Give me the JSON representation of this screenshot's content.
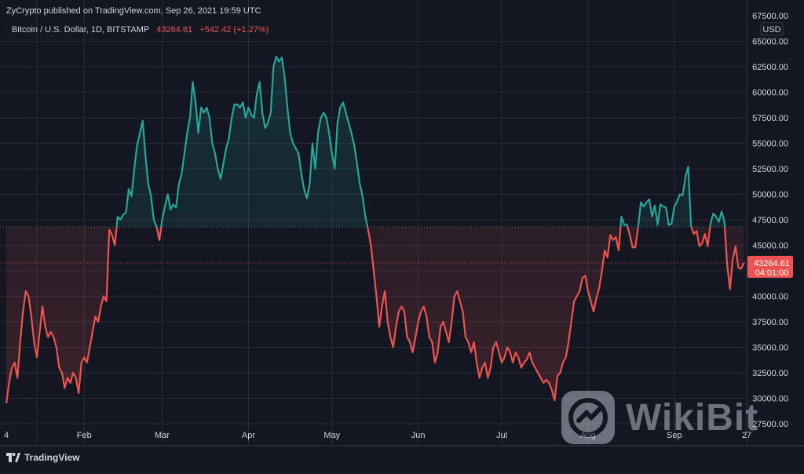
{
  "header": {
    "publish_line": "ZyCrypto published on TradingView.com, Sep 26, 2021 19:59 UTC",
    "symbol": "Bitcoin / U.S. Dollar, 1D, BITSTAMP",
    "last_price": "43264.61",
    "change": "+542.42 (+1.27%)"
  },
  "price_axis": {
    "currency": "USD",
    "top_label": "67500.00",
    "ticks": [
      "65000.00",
      "62500.00",
      "60000.00",
      "57500.00",
      "55000.00",
      "52500.00",
      "50000.00",
      "47500.00",
      "45000.00",
      "42500.00",
      "40000.00",
      "37500.00",
      "35000.00",
      "32500.00",
      "30000.00",
      "27500.00"
    ]
  },
  "time_axis": {
    "labels": [
      "4",
      "Feb",
      "Mar",
      "Apr",
      "May",
      "Jun",
      "Jul",
      "Aug",
      "Sep",
      "27"
    ]
  },
  "last_price_tag": {
    "price": "43264.61",
    "countdown": "04:01:00"
  },
  "branding": {
    "tradingview": "TradingView",
    "watermark": "WikiBit"
  },
  "colors": {
    "background": "#131722",
    "grid": "#2a2e39",
    "up": "#26a69a",
    "down": "#ef5350",
    "text": "#d1d4dc"
  },
  "chart_data": {
    "type": "line",
    "title": "Bitcoin / U.S. Dollar, 1D, BITSTAMP",
    "ylabel": "USD",
    "ylim": [
      27500,
      67500
    ],
    "baseline": 46800,
    "last_price": 43264.61,
    "x_start": "2021-01-04",
    "x_end": "2021-09-27",
    "series": [
      {
        "values": [
          [
            "2021-01-04",
            29500
          ],
          [
            "2021-01-05",
            31500
          ],
          [
            "2021-01-06",
            33000
          ],
          [
            "2021-01-07",
            33500
          ],
          [
            "2021-01-08",
            32000
          ],
          [
            "2021-01-09",
            35500
          ],
          [
            "2021-01-10",
            38500
          ],
          [
            "2021-01-11",
            40500
          ],
          [
            "2021-01-12",
            40000
          ],
          [
            "2021-01-13",
            38000
          ],
          [
            "2021-01-14",
            35500
          ],
          [
            "2021-01-15",
            34000
          ],
          [
            "2021-01-16",
            36500
          ],
          [
            "2021-01-17",
            39000
          ],
          [
            "2021-01-18",
            37000
          ],
          [
            "2021-01-19",
            36000
          ],
          [
            "2021-01-20",
            36500
          ],
          [
            "2021-01-21",
            36000
          ],
          [
            "2021-01-22",
            35000
          ],
          [
            "2021-01-23",
            33000
          ],
          [
            "2021-01-24",
            32500
          ],
          [
            "2021-01-25",
            31000
          ],
          [
            "2021-01-26",
            32000
          ],
          [
            "2021-01-27",
            31500
          ],
          [
            "2021-01-28",
            32500
          ],
          [
            "2021-01-29",
            32000
          ],
          [
            "2021-01-30",
            30500
          ],
          [
            "2021-01-31",
            33500
          ],
          [
            "2021-02-01",
            34000
          ],
          [
            "2021-02-02",
            33500
          ],
          [
            "2021-02-03",
            35000
          ],
          [
            "2021-02-04",
            36500
          ],
          [
            "2021-02-05",
            38000
          ],
          [
            "2021-02-06",
            37500
          ],
          [
            "2021-02-07",
            39000
          ],
          [
            "2021-02-08",
            40000
          ],
          [
            "2021-02-09",
            39500
          ],
          [
            "2021-02-10",
            46500
          ],
          [
            "2021-02-11",
            46000
          ],
          [
            "2021-02-12",
            45000
          ],
          [
            "2021-02-13",
            47800
          ],
          [
            "2021-02-14",
            47500
          ],
          [
            "2021-02-15",
            48000
          ],
          [
            "2021-02-16",
            48200
          ],
          [
            "2021-02-17",
            50500
          ],
          [
            "2021-02-18",
            49800
          ],
          [
            "2021-02-19",
            52500
          ],
          [
            "2021-02-20",
            54800
          ],
          [
            "2021-02-21",
            56000
          ],
          [
            "2021-02-22",
            57200
          ],
          [
            "2021-02-23",
            53800
          ],
          [
            "2021-02-24",
            51000
          ],
          [
            "2021-02-25",
            49800
          ],
          [
            "2021-02-26",
            47500
          ],
          [
            "2021-02-27",
            46800
          ],
          [
            "2021-02-28",
            45500
          ],
          [
            "2021-03-01",
            47500
          ],
          [
            "2021-03-02",
            48800
          ],
          [
            "2021-03-03",
            50000
          ],
          [
            "2021-03-04",
            48500
          ],
          [
            "2021-03-05",
            49000
          ],
          [
            "2021-03-06",
            48700
          ],
          [
            "2021-03-07",
            51000
          ],
          [
            "2021-03-08",
            52000
          ],
          [
            "2021-03-09",
            54000
          ],
          [
            "2021-03-10",
            56000
          ],
          [
            "2021-03-11",
            57500
          ],
          [
            "2021-03-12",
            61000
          ],
          [
            "2021-03-13",
            59000
          ],
          [
            "2021-03-14",
            56000
          ],
          [
            "2021-03-15",
            58500
          ],
          [
            "2021-03-16",
            58000
          ],
          [
            "2021-03-17",
            58500
          ],
          [
            "2021-03-18",
            57500
          ],
          [
            "2021-03-19",
            55000
          ],
          [
            "2021-03-20",
            54000
          ],
          [
            "2021-03-21",
            52500
          ],
          [
            "2021-03-22",
            51500
          ],
          [
            "2021-03-23",
            53000
          ],
          [
            "2021-03-24",
            54500
          ],
          [
            "2021-03-25",
            55500
          ],
          [
            "2021-03-26",
            57500
          ],
          [
            "2021-03-27",
            58800
          ],
          [
            "2021-03-28",
            58800
          ],
          [
            "2021-03-29",
            58500
          ],
          [
            "2021-03-30",
            59000
          ],
          [
            "2021-03-31",
            57500
          ],
          [
            "2021-04-01",
            58500
          ],
          [
            "2021-04-02",
            57800
          ],
          [
            "2021-04-03",
            57500
          ],
          [
            "2021-04-04",
            59800
          ],
          [
            "2021-04-05",
            61000
          ],
          [
            "2021-04-06",
            58000
          ],
          [
            "2021-04-07",
            56500
          ],
          [
            "2021-04-08",
            57000
          ],
          [
            "2021-04-09",
            58000
          ],
          [
            "2021-04-10",
            62500
          ],
          [
            "2021-04-11",
            63500
          ],
          [
            "2021-04-12",
            63000
          ],
          [
            "2021-04-13",
            63400
          ],
          [
            "2021-04-14",
            61500
          ],
          [
            "2021-04-15",
            58500
          ],
          [
            "2021-04-16",
            56000
          ],
          [
            "2021-04-17",
            55000
          ],
          [
            "2021-04-18",
            54500
          ],
          [
            "2021-04-19",
            54000
          ],
          [
            "2021-04-20",
            52000
          ],
          [
            "2021-04-21",
            50500
          ],
          [
            "2021-04-22",
            49600
          ],
          [
            "2021-04-23",
            51000
          ],
          [
            "2021-04-24",
            55000
          ],
          [
            "2021-04-25",
            52500
          ],
          [
            "2021-04-26",
            56000
          ],
          [
            "2021-04-27",
            57500
          ],
          [
            "2021-04-28",
            58000
          ],
          [
            "2021-04-29",
            57500
          ],
          [
            "2021-04-30",
            56000
          ],
          [
            "2021-05-01",
            54000
          ],
          [
            "2021-05-02",
            52500
          ],
          [
            "2021-05-03",
            57000
          ],
          [
            "2021-05-04",
            58500
          ],
          [
            "2021-05-05",
            59000
          ],
          [
            "2021-05-06",
            58000
          ],
          [
            "2021-05-07",
            57000
          ],
          [
            "2021-05-08",
            56000
          ],
          [
            "2021-05-09",
            54800
          ],
          [
            "2021-05-10",
            53000
          ],
          [
            "2021-05-11",
            51000
          ],
          [
            "2021-05-12",
            49800
          ],
          [
            "2021-05-13",
            47800
          ],
          [
            "2021-05-14",
            46500
          ],
          [
            "2021-05-15",
            45000
          ],
          [
            "2021-05-16",
            42500
          ],
          [
            "2021-05-17",
            40000
          ],
          [
            "2021-05-18",
            37000
          ],
          [
            "2021-05-19",
            39000
          ],
          [
            "2021-05-20",
            40500
          ],
          [
            "2021-05-21",
            37500
          ],
          [
            "2021-05-22",
            36000
          ],
          [
            "2021-05-23",
            35000
          ],
          [
            "2021-05-24",
            37000
          ],
          [
            "2021-05-25",
            38500
          ],
          [
            "2021-05-26",
            39000
          ],
          [
            "2021-05-27",
            38500
          ],
          [
            "2021-05-28",
            36000
          ],
          [
            "2021-05-29",
            35500
          ],
          [
            "2021-05-30",
            34500
          ],
          [
            "2021-05-31",
            36000
          ],
          [
            "2021-06-01",
            37500
          ],
          [
            "2021-06-02",
            38500
          ],
          [
            "2021-06-03",
            39000
          ],
          [
            "2021-06-04",
            38000
          ],
          [
            "2021-06-05",
            36000
          ],
          [
            "2021-06-06",
            35500
          ],
          [
            "2021-06-07",
            33500
          ],
          [
            "2021-06-08",
            34500
          ],
          [
            "2021-06-09",
            37000
          ],
          [
            "2021-06-10",
            37500
          ],
          [
            "2021-06-11",
            36500
          ],
          [
            "2021-06-12",
            35500
          ],
          [
            "2021-06-13",
            37500
          ],
          [
            "2021-06-14",
            40000
          ],
          [
            "2021-06-15",
            40500
          ],
          [
            "2021-06-16",
            39500
          ],
          [
            "2021-06-17",
            38500
          ],
          [
            "2021-06-18",
            36000
          ],
          [
            "2021-06-19",
            35500
          ],
          [
            "2021-06-20",
            34500
          ],
          [
            "2021-06-21",
            35500
          ],
          [
            "2021-06-22",
            33500
          ],
          [
            "2021-06-23",
            32000
          ],
          [
            "2021-06-24",
            33000
          ],
          [
            "2021-06-25",
            33500
          ],
          [
            "2021-06-26",
            32000
          ],
          [
            "2021-06-27",
            33000
          ],
          [
            "2021-06-28",
            35000
          ],
          [
            "2021-06-29",
            35500
          ],
          [
            "2021-06-30",
            34500
          ],
          [
            "2021-07-01",
            33500
          ],
          [
            "2021-07-02",
            34000
          ],
          [
            "2021-07-03",
            35000
          ],
          [
            "2021-07-04",
            34500
          ],
          [
            "2021-07-05",
            33500
          ],
          [
            "2021-07-06",
            34500
          ],
          [
            "2021-07-07",
            34000
          ],
          [
            "2021-07-08",
            33000
          ],
          [
            "2021-07-09",
            33500
          ],
          [
            "2021-07-10",
            33800
          ],
          [
            "2021-07-11",
            34500
          ],
          [
            "2021-07-12",
            33500
          ],
          [
            "2021-07-13",
            33000
          ],
          [
            "2021-07-14",
            32500
          ],
          [
            "2021-07-15",
            32000
          ],
          [
            "2021-07-16",
            31500
          ],
          [
            "2021-07-17",
            31800
          ],
          [
            "2021-07-18",
            31500
          ],
          [
            "2021-07-19",
            30800
          ],
          [
            "2021-07-20",
            29800
          ],
          [
            "2021-07-21",
            32200
          ],
          [
            "2021-07-22",
            32500
          ],
          [
            "2021-07-23",
            33500
          ],
          [
            "2021-07-24",
            34000
          ],
          [
            "2021-07-25",
            35500
          ],
          [
            "2021-07-26",
            37500
          ],
          [
            "2021-07-27",
            39500
          ],
          [
            "2021-07-28",
            40000
          ],
          [
            "2021-07-29",
            40500
          ],
          [
            "2021-07-30",
            41800
          ],
          [
            "2021-07-31",
            42000
          ],
          [
            "2021-08-01",
            40500
          ],
          [
            "2021-08-02",
            39500
          ],
          [
            "2021-08-03",
            38500
          ],
          [
            "2021-08-04",
            39800
          ],
          [
            "2021-08-05",
            40800
          ],
          [
            "2021-08-06",
            42500
          ],
          [
            "2021-08-07",
            44500
          ],
          [
            "2021-08-08",
            43800
          ],
          [
            "2021-08-09",
            46000
          ],
          [
            "2021-08-10",
            45500
          ],
          [
            "2021-08-11",
            45800
          ],
          [
            "2021-08-12",
            44500
          ],
          [
            "2021-08-13",
            47800
          ],
          [
            "2021-08-14",
            47000
          ],
          [
            "2021-08-15",
            47000
          ],
          [
            "2021-08-16",
            46000
          ],
          [
            "2021-08-17",
            44800
          ],
          [
            "2021-08-18",
            44800
          ],
          [
            "2021-08-19",
            46800
          ],
          [
            "2021-08-20",
            49200
          ],
          [
            "2021-08-21",
            48800
          ],
          [
            "2021-08-22",
            49200
          ],
          [
            "2021-08-23",
            49500
          ],
          [
            "2021-08-24",
            47800
          ],
          [
            "2021-08-25",
            48900
          ],
          [
            "2021-08-26",
            47000
          ],
          [
            "2021-08-27",
            49000
          ],
          [
            "2021-08-28",
            48800
          ],
          [
            "2021-08-29",
            48700
          ],
          [
            "2021-08-30",
            47000
          ],
          [
            "2021-08-31",
            47100
          ],
          [
            "2021-09-01",
            48800
          ],
          [
            "2021-09-02",
            49300
          ],
          [
            "2021-09-03",
            50000
          ],
          [
            "2021-09-04",
            49900
          ],
          [
            "2021-09-05",
            51700
          ],
          [
            "2021-09-06",
            52700
          ],
          [
            "2021-09-07",
            46900
          ],
          [
            "2021-09-08",
            46100
          ],
          [
            "2021-09-09",
            46400
          ],
          [
            "2021-09-10",
            44900
          ],
          [
            "2021-09-11",
            45200
          ],
          [
            "2021-09-12",
            46100
          ],
          [
            "2021-09-13",
            44900
          ],
          [
            "2021-09-14",
            47100
          ],
          [
            "2021-09-15",
            48100
          ],
          [
            "2021-09-16",
            47800
          ],
          [
            "2021-09-17",
            47300
          ],
          [
            "2021-09-18",
            48300
          ],
          [
            "2021-09-19",
            47300
          ],
          [
            "2021-09-20",
            43000
          ],
          [
            "2021-09-21",
            40700
          ],
          [
            "2021-09-22",
            43600
          ],
          [
            "2021-09-23",
            44900
          ],
          [
            "2021-09-24",
            42800
          ],
          [
            "2021-09-25",
            42700
          ],
          [
            "2021-09-26",
            43264.61
          ]
        ]
      }
    ]
  }
}
